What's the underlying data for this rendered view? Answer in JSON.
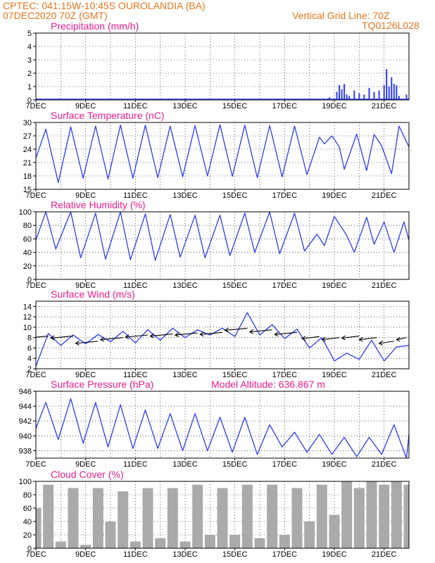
{
  "header": {
    "line1": "CPTEC:   041:15W-10:45S   OUROLANDIA (BA)",
    "line2": "07DEC2020 70Z (GMT)",
    "vgrid": "Vertical Grid Line: 70Z",
    "code": "TQ0126L028"
  },
  "colors": {
    "header": "#e8761e",
    "title": "#ee1c8c",
    "series": "#2b3df5",
    "cloud": "#aaaaaa",
    "arrow": "#000000"
  },
  "x_axis": {
    "labels": [
      "7DEC",
      "9DEC",
      "11DEC",
      "13DEC",
      "15DEC",
      "17DEC",
      "19DEC",
      "21DEC"
    ],
    "label_days": [
      0,
      2,
      4,
      6,
      8,
      10,
      12,
      14
    ],
    "range_days": [
      0,
      15
    ]
  },
  "chart_data": [
    {
      "id": "precip",
      "type": "bar",
      "title": "Precipitation (mm/h)",
      "ylim": [
        0,
        5
      ],
      "yticks": [
        0,
        1,
        2,
        3,
        4,
        5
      ],
      "grid": true,
      "series": [
        {
          "day": [
            11.0,
            11.5,
            11.8,
            12.1,
            12.2,
            12.3,
            12.4,
            12.5,
            12.6,
            12.8,
            13.0,
            13.2,
            13.4,
            13.6,
            13.8,
            14.0,
            14.1,
            14.2,
            14.3,
            14.4,
            14.5,
            14.6,
            14.9
          ],
          "values": [
            0.05,
            0.1,
            0.2,
            0.6,
            1.1,
            0.8,
            1.2,
            0.4,
            0.3,
            0.7,
            0.5,
            0.4,
            0.9,
            0.6,
            0.7,
            1.1,
            2.3,
            1.0,
            1.7,
            1.2,
            1.1,
            0.3,
            0.4
          ]
        }
      ]
    },
    {
      "id": "temp",
      "type": "line",
      "title": "Surface Temperature (nC)",
      "ylim": [
        15,
        30
      ],
      "yticks": [
        15,
        18,
        21,
        24,
        27,
        30
      ],
      "grid": true,
      "series": [
        {
          "day": [
            0,
            0.4,
            0.9,
            1.4,
            1.9,
            2.4,
            2.9,
            3.4,
            3.9,
            4.4,
            4.9,
            5.4,
            5.9,
            6.4,
            6.9,
            7.4,
            7.9,
            8.4,
            8.9,
            9.4,
            9.9,
            10.4,
            10.9,
            11.4,
            11.6,
            11.9,
            12.2,
            12.4,
            12.9,
            13.3,
            13.6,
            13.9,
            14.3,
            14.6,
            15.0
          ],
          "values": [
            22,
            28.5,
            16.5,
            29,
            17.5,
            29.2,
            17.3,
            29.4,
            17.5,
            29.4,
            17.6,
            29.2,
            17.8,
            29.3,
            18,
            29.5,
            17.9,
            29.4,
            17.6,
            29.3,
            17.8,
            29.2,
            18.3,
            26.7,
            25.2,
            27,
            24.5,
            19.5,
            27.4,
            19.2,
            27.3,
            24.8,
            18.5,
            29.2,
            24.5
          ]
        }
      ]
    },
    {
      "id": "rh",
      "type": "line",
      "title": "Relative Humidity (%)",
      "ylim": [
        0,
        100
      ],
      "yticks": [
        0,
        20,
        40,
        60,
        80,
        100
      ],
      "grid": true,
      "series": [
        {
          "day": [
            0,
            0.4,
            0.8,
            1.4,
            1.8,
            2.4,
            2.8,
            3.4,
            3.8,
            4.4,
            4.8,
            5.4,
            5.8,
            6.4,
            6.8,
            7.4,
            7.8,
            8.4,
            8.8,
            9.4,
            9.8,
            10.4,
            10.8,
            11.3,
            11.6,
            12.0,
            12.5,
            12.8,
            13.3,
            13.6,
            14.0,
            14.4,
            14.8,
            15.0
          ],
          "values": [
            58,
            100,
            45,
            100,
            32,
            98,
            30,
            100,
            29,
            97,
            28,
            96,
            33,
            95,
            32,
            95,
            35,
            98,
            40,
            100,
            38,
            98,
            42,
            67,
            50,
            93,
            65,
            40,
            92,
            52,
            85,
            40,
            85,
            58
          ]
        }
      ]
    },
    {
      "id": "wind",
      "type": "line",
      "title": "Surface Wind (m/s)",
      "ylim": [
        2,
        15
      ],
      "yticks": [
        2,
        4,
        6,
        8,
        10,
        12,
        14
      ],
      "grid": true,
      "series": [
        {
          "day": [
            0,
            0.5,
            1.0,
            1.5,
            2.0,
            2.5,
            3.0,
            3.5,
            4.0,
            4.5,
            5.0,
            5.5,
            6.0,
            6.5,
            7.0,
            7.5,
            8.0,
            8.5,
            9.0,
            9.5,
            10.0,
            10.5,
            11.0,
            11.5,
            12.0,
            12.5,
            13.0,
            13.5,
            14.0,
            14.5,
            15.0
          ],
          "values": [
            2.5,
            8.8,
            6.5,
            8.5,
            6.8,
            8.6,
            7.2,
            9.2,
            7.0,
            9.5,
            7.5,
            9.8,
            8.0,
            9.5,
            8.5,
            9.8,
            8.2,
            12.8,
            8.5,
            10.5,
            7.8,
            9.6,
            6.0,
            8.0,
            3.5,
            5.0,
            3.8,
            7.5,
            3.5,
            6.2,
            6.5
          ]
        }
      ],
      "arrows": [
        {
          "day": 0.5,
          "speed": 8.3,
          "len": 0.9
        },
        {
          "day": 1.5,
          "speed": 8.3,
          "len": 0.9
        },
        {
          "day": 2.5,
          "speed": 7.3,
          "len": 0.9
        },
        {
          "day": 3.5,
          "speed": 8.0,
          "len": 0.9
        },
        {
          "day": 4.5,
          "speed": 8.5,
          "len": 0.9
        },
        {
          "day": 5.5,
          "speed": 8.7,
          "len": 0.9
        },
        {
          "day": 6.5,
          "speed": 8.9,
          "len": 0.9
        },
        {
          "day": 7.5,
          "speed": 9.0,
          "len": 0.9
        },
        {
          "day": 8.5,
          "speed": 9.8,
          "len": 0.9
        },
        {
          "day": 9.5,
          "speed": 9.5,
          "len": 0.9
        },
        {
          "day": 10.5,
          "speed": 9.0,
          "len": 0.9
        },
        {
          "day": 11.4,
          "speed": 8.2,
          "len": 0.7
        },
        {
          "day": 12.2,
          "speed": 8.0,
          "len": 0.7
        },
        {
          "day": 13.0,
          "speed": 8.3,
          "len": 0.7
        },
        {
          "day": 13.7,
          "speed": 8.0,
          "len": 0.7
        },
        {
          "day": 14.4,
          "speed": 7.3,
          "len": 0.6
        },
        {
          "day": 14.9,
          "speed": 8.0,
          "len": 0.4
        }
      ]
    },
    {
      "id": "press",
      "type": "line",
      "title": "Surface Pressure (hPa)",
      "annotation": "Model Altitude: 636.867 m",
      "ylim": [
        937,
        946
      ],
      "yticks": [
        938,
        940,
        942,
        944,
        946
      ],
      "grid": true,
      "series": [
        {
          "day": [
            0,
            0.4,
            0.9,
            1.4,
            1.9,
            2.4,
            2.9,
            3.4,
            3.9,
            4.4,
            4.9,
            5.4,
            5.9,
            6.4,
            6.9,
            7.4,
            7.9,
            8.4,
            8.9,
            9.4,
            9.9,
            10.4,
            10.9,
            11.4,
            11.9,
            12.4,
            12.9,
            13.4,
            13.9,
            14.4,
            14.9,
            15.0
          ],
          "values": [
            941,
            944.5,
            939.5,
            945,
            939,
            944.5,
            938.5,
            944.2,
            938.3,
            943.5,
            938.3,
            943,
            938,
            943,
            938,
            942.5,
            937.8,
            942.5,
            937.5,
            941.5,
            938.5,
            940.5,
            937.8,
            940.2,
            937.5,
            939.8,
            937.2,
            939.8,
            937.5,
            941.5,
            937,
            940.2
          ]
        }
      ]
    },
    {
      "id": "cloud",
      "type": "bar",
      "title": "Cloud Cover (%)",
      "ylim": [
        0,
        100
      ],
      "yticks": [
        0,
        20,
        40,
        60,
        80,
        100
      ],
      "grid": true,
      "series": [
        {
          "day": [
            0.0,
            0.5,
            1.0,
            1.5,
            2.0,
            2.5,
            3.0,
            3.5,
            4.0,
            4.5,
            5.0,
            5.5,
            6.0,
            6.5,
            7.0,
            7.5,
            8.0,
            8.5,
            9.0,
            9.5,
            10.0,
            10.5,
            11.0,
            11.5,
            12.0,
            12.5,
            13.0,
            13.5,
            14.0,
            14.5,
            15.0
          ],
          "values": [
            60,
            95,
            10,
            90,
            5,
            90,
            40,
            85,
            10,
            90,
            15,
            90,
            10,
            95,
            20,
            90,
            20,
            95,
            15,
            95,
            20,
            90,
            40,
            95,
            50,
            100,
            90,
            100,
            95,
            100,
            95
          ]
        }
      ]
    }
  ]
}
